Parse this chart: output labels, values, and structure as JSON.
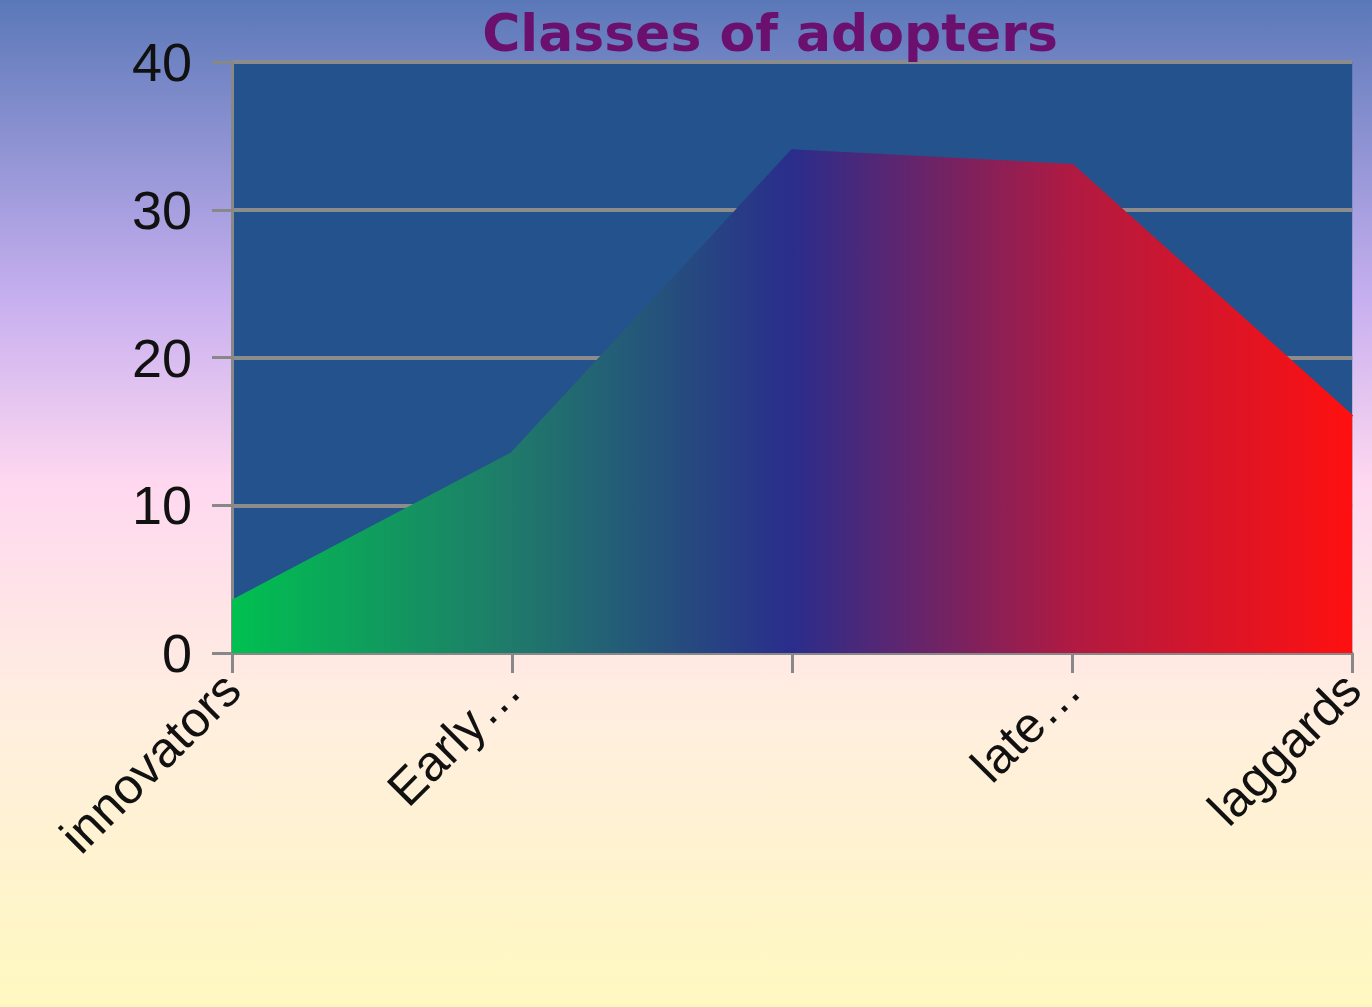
{
  "chart_data": {
    "type": "area",
    "title": "Classes of adopters",
    "categories": [
      "innovators",
      "Early…",
      null,
      "late…",
      "laggards"
    ],
    "values": [
      3.5,
      13.5,
      34,
      33,
      16
    ],
    "colors": [
      "#00c050",
      "#1f7a6a",
      "#2a2d8c",
      "#b01a42",
      "#ff1010"
    ],
    "ylim": [
      0,
      40
    ],
    "yticks": [
      0,
      10,
      20,
      30,
      40
    ],
    "grid": "y",
    "marker": "none"
  }
}
